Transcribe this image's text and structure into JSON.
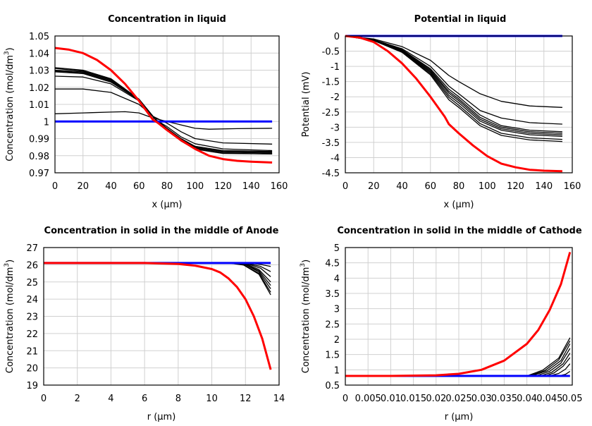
{
  "chart_data": [
    {
      "type": "line",
      "title": "Concentration in liquid",
      "xlabel": "x (µm)",
      "ylabel": "Concentration (mol/dm3)",
      "xlim": [
        0,
        160
      ],
      "ylim": [
        0.97,
        1.05
      ],
      "xticks": [
        0,
        20,
        40,
        60,
        80,
        100,
        120,
        140,
        160
      ],
      "xtick_labels": [
        "0",
        "20",
        "40",
        "60",
        "80",
        "100",
        "120",
        "140",
        "160"
      ],
      "yticks": [
        0.97,
        0.98,
        0.99,
        1.0,
        1.01,
        1.02,
        1.03,
        1.04,
        1.05
      ],
      "ytick_labels": [
        "0.97",
        "0.98",
        "0.99",
        "1",
        "1.01",
        "1.02",
        "1.03",
        "1.04",
        "1.05"
      ],
      "grid": true,
      "series": [
        {
          "color": "#000000",
          "x": [
            0,
            20,
            40,
            50,
            60,
            70,
            80,
            90,
            100,
            110,
            130,
            155
          ],
          "y": [
            1.0045,
            1.005,
            1.0055,
            1.0057,
            1.005,
            1.002,
            1.0,
            0.998,
            0.996,
            0.9955,
            0.9958,
            0.996
          ]
        },
        {
          "color": "#000000",
          "x": [
            0,
            20,
            40,
            60,
            70,
            80,
            90,
            100,
            120,
            155
          ],
          "y": [
            1.019,
            1.019,
            1.017,
            1.01,
            1.003,
            0.999,
            0.994,
            0.99,
            0.9875,
            0.9868
          ]
        },
        {
          "color": "#000000",
          "x": [
            0,
            20,
            40,
            60,
            72,
            80,
            90,
            100,
            120,
            155
          ],
          "y": [
            1.0265,
            1.026,
            1.022,
            1.012,
            1.001,
            0.997,
            0.991,
            0.987,
            0.984,
            0.983
          ]
        },
        {
          "color": "#000000",
          "x": [
            0,
            20,
            40,
            60,
            72,
            80,
            90,
            100,
            120,
            155
          ],
          "y": [
            1.029,
            1.028,
            1.023,
            1.0125,
            1.001,
            0.996,
            0.99,
            0.9855,
            0.983,
            0.9825
          ]
        },
        {
          "color": "#000000",
          "x": [
            0,
            20,
            40,
            60,
            72,
            80,
            90,
            100,
            120,
            155
          ],
          "y": [
            1.0295,
            1.0285,
            1.0235,
            1.0125,
            1.001,
            0.996,
            0.9895,
            0.985,
            0.9825,
            0.982
          ]
        },
        {
          "color": "#000000",
          "x": [
            0,
            20,
            40,
            60,
            72,
            80,
            90,
            100,
            120,
            155
          ],
          "y": [
            1.03,
            1.029,
            1.024,
            1.0127,
            1.001,
            0.9955,
            0.989,
            0.9845,
            0.982,
            0.9815
          ]
        },
        {
          "color": "#000000",
          "x": [
            0,
            20,
            40,
            60,
            72,
            80,
            90,
            100,
            120,
            155
          ],
          "y": [
            1.031,
            1.0295,
            1.0245,
            1.013,
            1.001,
            0.9955,
            0.9888,
            0.984,
            0.9815,
            0.981
          ]
        },
        {
          "color": "#000000",
          "x": [
            0,
            20,
            40,
            60,
            72,
            80,
            90,
            100,
            120,
            155
          ],
          "y": [
            1.0315,
            1.03,
            1.025,
            1.013,
            1.001,
            0.9953,
            0.9885,
            0.9838,
            0.9813,
            0.981
          ]
        },
        {
          "color": "#0000ff",
          "x": [
            0,
            155
          ],
          "y": [
            1.0,
            1.0
          ]
        },
        {
          "color": "#ff0000",
          "x": [
            0,
            10,
            20,
            30,
            40,
            50,
            60,
            70,
            73,
            80,
            90,
            100,
            110,
            120,
            130,
            140,
            155
          ],
          "y": [
            1.043,
            1.042,
            1.04,
            1.036,
            1.03,
            1.022,
            1.012,
            1.001,
            0.9995,
            0.995,
            0.989,
            0.984,
            0.98,
            0.978,
            0.977,
            0.9765,
            0.976
          ]
        }
      ]
    },
    {
      "type": "line",
      "title": "Potential in liquid",
      "xlabel": "x (µm)",
      "ylabel": "Potential (mV)",
      "xlim": [
        0,
        160
      ],
      "ylim": [
        -4.5,
        0
      ],
      "xticks": [
        0,
        20,
        40,
        60,
        80,
        100,
        120,
        140,
        160
      ],
      "xtick_labels": [
        "0",
        "20",
        "40",
        "60",
        "80",
        "100",
        "120",
        "140",
        "160"
      ],
      "yticks": [
        -4.5,
        -4,
        -3.5,
        -3,
        -2.5,
        -2,
        -1.5,
        -1,
        -0.5,
        0
      ],
      "ytick_labels": [
        "-4.5",
        "-4",
        "-3.5",
        "-3",
        "-2.5",
        "-2",
        "-1.5",
        "-1",
        "-0.5",
        "0"
      ],
      "grid": true,
      "series": [
        {
          "color": "#000000",
          "x": [
            0,
            20,
            40,
            60,
            73,
            80,
            95,
            110,
            130,
            153
          ],
          "y": [
            0,
            -0.1,
            -0.35,
            -0.8,
            -1.3,
            -1.5,
            -1.9,
            -2.15,
            -2.3,
            -2.35
          ]
        },
        {
          "color": "#000000",
          "x": [
            0,
            20,
            40,
            60,
            73,
            80,
            95,
            110,
            130,
            153
          ],
          "y": [
            0,
            -0.12,
            -0.42,
            -1.0,
            -1.65,
            -1.9,
            -2.45,
            -2.7,
            -2.85,
            -2.9
          ]
        },
        {
          "color": "#000000",
          "x": [
            0,
            20,
            40,
            60,
            73,
            80,
            95,
            110,
            130,
            153
          ],
          "y": [
            0,
            -0.13,
            -0.45,
            -1.08,
            -1.75,
            -2.0,
            -2.6,
            -2.95,
            -3.1,
            -3.15
          ]
        },
        {
          "color": "#000000",
          "x": [
            0,
            20,
            40,
            60,
            73,
            80,
            95,
            110,
            130,
            153
          ],
          "y": [
            0,
            -0.13,
            -0.47,
            -1.12,
            -1.82,
            -2.07,
            -2.68,
            -3.0,
            -3.15,
            -3.2
          ]
        },
        {
          "color": "#000000",
          "x": [
            0,
            20,
            40,
            60,
            73,
            80,
            95,
            110,
            130,
            153
          ],
          "y": [
            0,
            -0.14,
            -0.49,
            -1.16,
            -1.88,
            -2.13,
            -2.74,
            -3.05,
            -3.2,
            -3.25
          ]
        },
        {
          "color": "#000000",
          "x": [
            0,
            20,
            40,
            60,
            73,
            80,
            95,
            110,
            130,
            153
          ],
          "y": [
            0,
            -0.14,
            -0.5,
            -1.2,
            -1.95,
            -2.2,
            -2.8,
            -3.1,
            -3.25,
            -3.3
          ]
        },
        {
          "color": "#000000",
          "x": [
            0,
            20,
            40,
            60,
            73,
            80,
            95,
            110,
            130,
            153
          ],
          "y": [
            0,
            -0.15,
            -0.52,
            -1.24,
            -2.02,
            -2.28,
            -2.88,
            -3.2,
            -3.35,
            -3.4
          ]
        },
        {
          "color": "#000000",
          "x": [
            0,
            20,
            40,
            60,
            73,
            80,
            95,
            110,
            130,
            153
          ],
          "y": [
            0,
            -0.15,
            -0.54,
            -1.28,
            -2.1,
            -2.35,
            -2.95,
            -3.27,
            -3.42,
            -3.47
          ]
        },
        {
          "color": "#0000ff",
          "x": [
            0,
            153
          ],
          "y": [
            0,
            0
          ]
        },
        {
          "color": "#ff0000",
          "x": [
            0,
            10,
            20,
            30,
            40,
            50,
            60,
            70,
            73,
            80,
            90,
            100,
            110,
            120,
            130,
            140,
            153
          ],
          "y": [
            0,
            -0.05,
            -0.2,
            -0.5,
            -0.9,
            -1.4,
            -2.0,
            -2.65,
            -2.9,
            -3.2,
            -3.6,
            -3.95,
            -4.2,
            -4.32,
            -4.4,
            -4.43,
            -4.45
          ]
        }
      ]
    },
    {
      "type": "line",
      "title": "Concentration in solid in the middle of Anode",
      "xlabel": "r (µm)",
      "ylabel": "Concentration (mol/dm3)",
      "xlim": [
        0,
        14
      ],
      "ylim": [
        19,
        27
      ],
      "xticks": [
        0,
        2,
        4,
        6,
        8,
        10,
        12,
        14
      ],
      "xtick_labels": [
        "0",
        "2",
        "4",
        "6",
        "8",
        "10",
        "12",
        "14"
      ],
      "yticks": [
        19,
        20,
        21,
        22,
        23,
        24,
        25,
        26,
        27
      ],
      "ytick_labels": [
        "19",
        "20",
        "21",
        "22",
        "23",
        "24",
        "25",
        "26",
        "27"
      ],
      "grid": true,
      "series": [
        {
          "color": "#000000",
          "x": [
            0,
            11.8,
            12.5,
            13,
            13.5
          ],
          "y": [
            26.1,
            26.1,
            26.07,
            26.0,
            25.9
          ]
        },
        {
          "color": "#000000",
          "x": [
            0,
            11.6,
            12.3,
            12.9,
            13.5
          ],
          "y": [
            26.1,
            26.1,
            26.05,
            25.9,
            25.6
          ]
        },
        {
          "color": "#000000",
          "x": [
            0,
            11.5,
            12.2,
            12.9,
            13.5
          ],
          "y": [
            26.1,
            26.1,
            26.03,
            25.8,
            25.3
          ]
        },
        {
          "color": "#000000",
          "x": [
            0,
            11.4,
            12.1,
            12.8,
            13.5
          ],
          "y": [
            26.1,
            26.1,
            26.02,
            25.72,
            25.0
          ]
        },
        {
          "color": "#000000",
          "x": [
            0,
            11.3,
            12.0,
            12.8,
            13.5
          ],
          "y": [
            26.1,
            26.1,
            26.01,
            25.65,
            24.8
          ]
        },
        {
          "color": "#000000",
          "x": [
            0,
            11.2,
            12.0,
            12.8,
            13.5
          ],
          "y": [
            26.1,
            26.1,
            26.0,
            25.58,
            24.6
          ]
        },
        {
          "color": "#000000",
          "x": [
            0,
            11.1,
            11.9,
            12.8,
            13.5
          ],
          "y": [
            26.1,
            26.1,
            25.99,
            25.5,
            24.4
          ]
        },
        {
          "color": "#000000",
          "x": [
            0,
            11.0,
            11.9,
            12.8,
            13.5
          ],
          "y": [
            26.1,
            26.1,
            25.98,
            25.45,
            24.25
          ]
        },
        {
          "color": "#0000ff",
          "x": [
            0,
            13.5
          ],
          "y": [
            26.1,
            26.1
          ]
        },
        {
          "color": "#ff0000",
          "x": [
            0,
            6,
            8,
            9,
            10,
            10.5,
            11,
            11.5,
            12,
            12.5,
            13,
            13.5
          ],
          "y": [
            26.1,
            26.1,
            26.05,
            25.95,
            25.75,
            25.55,
            25.2,
            24.7,
            24.0,
            23.0,
            21.7,
            19.9
          ]
        }
      ]
    },
    {
      "type": "line",
      "title": "Concentration in solid in the middle of Cathode",
      "xlabel": "r (µm)",
      "ylabel": "Concentration (mol/dm3)",
      "xlim": [
        0,
        0.05
      ],
      "ylim": [
        0.5,
        5
      ],
      "xticks": [
        0,
        0.005,
        0.01,
        0.015,
        0.02,
        0.025,
        0.03,
        0.035,
        0.04,
        0.045,
        0.05
      ],
      "xtick_labels": [
        "0",
        "0.005",
        "0.01",
        "0.015",
        "0.02",
        "0.025",
        "0.03",
        "0.035",
        "0.04",
        "0.045",
        "0.05"
      ],
      "yticks": [
        0.5,
        1,
        1.5,
        2,
        2.5,
        3,
        3.5,
        4,
        4.5,
        5
      ],
      "ytick_labels": [
        "0.5",
        "1",
        "1.5",
        "2",
        "2.5",
        "3",
        "3.5",
        "4",
        "4.5",
        "5"
      ],
      "grid": true,
      "series": [
        {
          "color": "#000000",
          "x": [
            0,
            0.047,
            0.0485,
            0.0495
          ],
          "y": [
            0.8,
            0.8,
            0.85,
            0.95
          ]
        },
        {
          "color": "#000000",
          "x": [
            0,
            0.045,
            0.047,
            0.0485,
            0.0495
          ],
          "y": [
            0.8,
            0.8,
            0.88,
            1.02,
            1.2
          ]
        },
        {
          "color": "#000000",
          "x": [
            0,
            0.044,
            0.046,
            0.048,
            0.0495
          ],
          "y": [
            0.8,
            0.8,
            0.9,
            1.12,
            1.4
          ]
        },
        {
          "color": "#000000",
          "x": [
            0,
            0.043,
            0.0455,
            0.048,
            0.0495
          ],
          "y": [
            0.8,
            0.8,
            0.92,
            1.2,
            1.55
          ]
        },
        {
          "color": "#000000",
          "x": [
            0,
            0.042,
            0.045,
            0.0475,
            0.0495
          ],
          "y": [
            0.8,
            0.8,
            0.95,
            1.22,
            1.7
          ]
        },
        {
          "color": "#000000",
          "x": [
            0,
            0.041,
            0.0445,
            0.0475,
            0.0495
          ],
          "y": [
            0.8,
            0.8,
            0.97,
            1.3,
            1.85
          ]
        },
        {
          "color": "#000000",
          "x": [
            0,
            0.0405,
            0.044,
            0.047,
            0.0495
          ],
          "y": [
            0.8,
            0.8,
            0.98,
            1.32,
            1.95
          ]
        },
        {
          "color": "#000000",
          "x": [
            0,
            0.04,
            0.0435,
            0.047,
            0.0495
          ],
          "y": [
            0.8,
            0.8,
            0.99,
            1.38,
            2.05
          ]
        },
        {
          "color": "#0000ff",
          "x": [
            0,
            0.0495
          ],
          "y": [
            0.8,
            0.8
          ]
        },
        {
          "color": "#ff0000",
          "x": [
            0,
            0.01,
            0.02,
            0.025,
            0.03,
            0.035,
            0.04,
            0.0425,
            0.045,
            0.0475,
            0.0495
          ],
          "y": [
            0.8,
            0.8,
            0.82,
            0.87,
            1.0,
            1.3,
            1.85,
            2.3,
            2.95,
            3.8,
            4.85
          ]
        }
      ]
    }
  ]
}
